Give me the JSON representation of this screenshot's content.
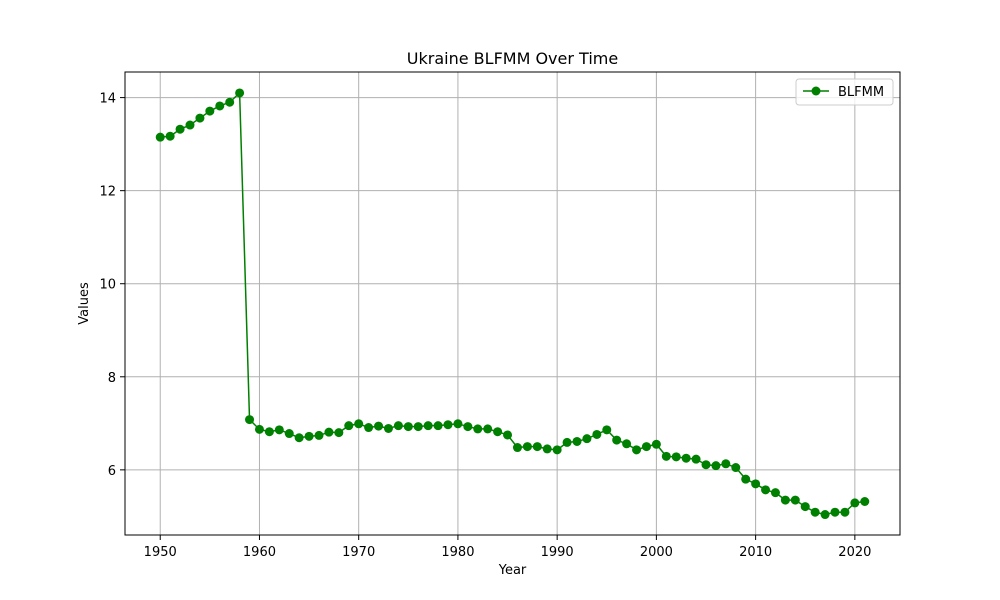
{
  "chart_data": {
    "type": "line",
    "title": "Ukraine BLFMM Over Time",
    "xlabel": "Year",
    "ylabel": "Values",
    "xlim": [
      1946.45,
      2024.55
    ],
    "ylim": [
      4.6,
      14.55
    ],
    "xticks": [
      1950,
      1960,
      1970,
      1980,
      1990,
      2000,
      2010,
      2020
    ],
    "yticks": [
      6,
      8,
      10,
      12,
      14
    ],
    "grid": true,
    "legend_position": "top-right",
    "series": [
      {
        "name": "BLFMM",
        "color": "#008000",
        "marker": "circle",
        "x": [
          1950,
          1951,
          1952,
          1953,
          1954,
          1955,
          1956,
          1957,
          1958,
          1959,
          1960,
          1961,
          1962,
          1963,
          1964,
          1965,
          1966,
          1967,
          1968,
          1969,
          1970,
          1971,
          1972,
          1973,
          1974,
          1975,
          1976,
          1977,
          1978,
          1979,
          1980,
          1981,
          1982,
          1983,
          1984,
          1985,
          1986,
          1987,
          1988,
          1989,
          1990,
          1991,
          1992,
          1993,
          1994,
          1995,
          1996,
          1997,
          1998,
          1999,
          2000,
          2001,
          2002,
          2003,
          2004,
          2005,
          2006,
          2007,
          2008,
          2009,
          2010,
          2011,
          2012,
          2013,
          2014,
          2015,
          2016,
          2017,
          2018,
          2019,
          2020,
          2021
        ],
        "y": [
          13.15,
          13.17,
          13.32,
          13.41,
          13.56,
          13.71,
          13.82,
          13.9,
          14.1,
          7.08,
          6.87,
          6.82,
          6.86,
          6.78,
          6.69,
          6.72,
          6.74,
          6.81,
          6.8,
          6.95,
          6.99,
          6.91,
          6.94,
          6.89,
          6.95,
          6.93,
          6.93,
          6.95,
          6.95,
          6.97,
          6.99,
          6.93,
          6.88,
          6.88,
          6.82,
          6.75,
          6.48,
          6.5,
          6.5,
          6.45,
          6.43,
          6.59,
          6.61,
          6.67,
          6.76,
          6.86,
          6.64,
          6.56,
          6.43,
          6.5,
          6.55,
          6.29,
          6.28,
          6.25,
          6.23,
          6.11,
          6.09,
          6.13,
          6.05,
          5.8,
          5.7,
          5.57,
          5.51,
          5.35,
          5.35,
          5.21,
          5.09,
          5.04,
          5.09,
          5.09,
          5.29,
          5.32
        ]
      }
    ]
  }
}
